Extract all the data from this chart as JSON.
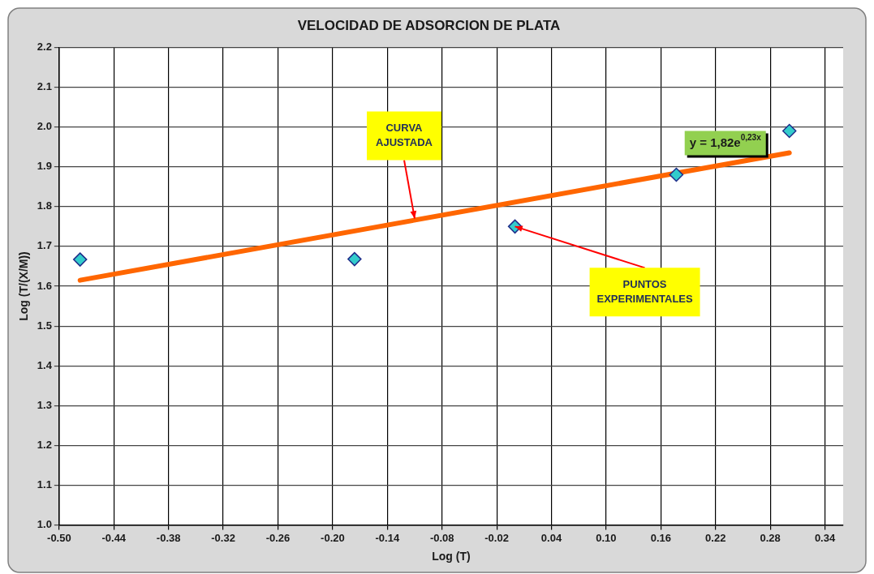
{
  "chart_data": {
    "type": "scatter",
    "title": "VELOCIDAD DE ADSORCION DE PLATA",
    "xlabel": "Log (T)",
    "ylabel": "Log (T/(X/M))",
    "xlim": [
      -0.5,
      0.36
    ],
    "ylim": [
      1.0,
      2.2
    ],
    "xticks": [
      {
        "value": -0.5,
        "label": "-0.50"
      },
      {
        "value": -0.44,
        "label": "-0.44"
      },
      {
        "value": -0.38,
        "label": "-0.38"
      },
      {
        "value": -0.32,
        "label": "-0.32"
      },
      {
        "value": -0.26,
        "label": "-0.26"
      },
      {
        "value": -0.2,
        "label": "-0.20"
      },
      {
        "value": -0.14,
        "label": "-0.14"
      },
      {
        "value": -0.08,
        "label": "-0.08"
      },
      {
        "value": -0.02,
        "label": "-0.02"
      },
      {
        "value": 0.04,
        "label": "0.04"
      },
      {
        "value": 0.1,
        "label": "0.10"
      },
      {
        "value": 0.16,
        "label": "0.16"
      },
      {
        "value": 0.22,
        "label": "0.22"
      },
      {
        "value": 0.28,
        "label": "0.28"
      },
      {
        "value": 0.34,
        "label": "0.34"
      }
    ],
    "yticks": [
      {
        "value": 1.0,
        "label": "1.0"
      },
      1.1,
      1.2,
      1.3,
      1.4,
      1.5,
      1.6,
      1.7,
      1.8,
      1.9,
      {
        "value": 2.0,
        "label": "2.0"
      },
      2.1,
      2.2
    ],
    "grid": true,
    "legend": false,
    "series": [
      {
        "type": "scatter",
        "marker": "diamond",
        "color": "#33cccc",
        "x": [
          -0.477,
          -0.176,
          0.0,
          0.177,
          0.301
        ],
        "values": [
          1.667,
          1.668,
          1.75,
          1.88,
          1.99
        ]
      },
      {
        "type": "line",
        "marker": "none",
        "line_style": "solid",
        "color": "#ff6600",
        "x": [
          -0.477,
          0.301
        ],
        "values": [
          1.615,
          1.935
        ]
      }
    ],
    "annotations": [
      {
        "text": "CURVA AJUSTADA",
        "x": -0.11,
        "y": 1.77
      },
      {
        "text": "PUNTOS EXPERIMENTALES",
        "x": 0.0,
        "y": 1.75
      },
      {
        "text": "y = 1,82e$^{0,23x}$",
        "x": 0.301,
        "y": 1.935
      }
    ]
  }
}
